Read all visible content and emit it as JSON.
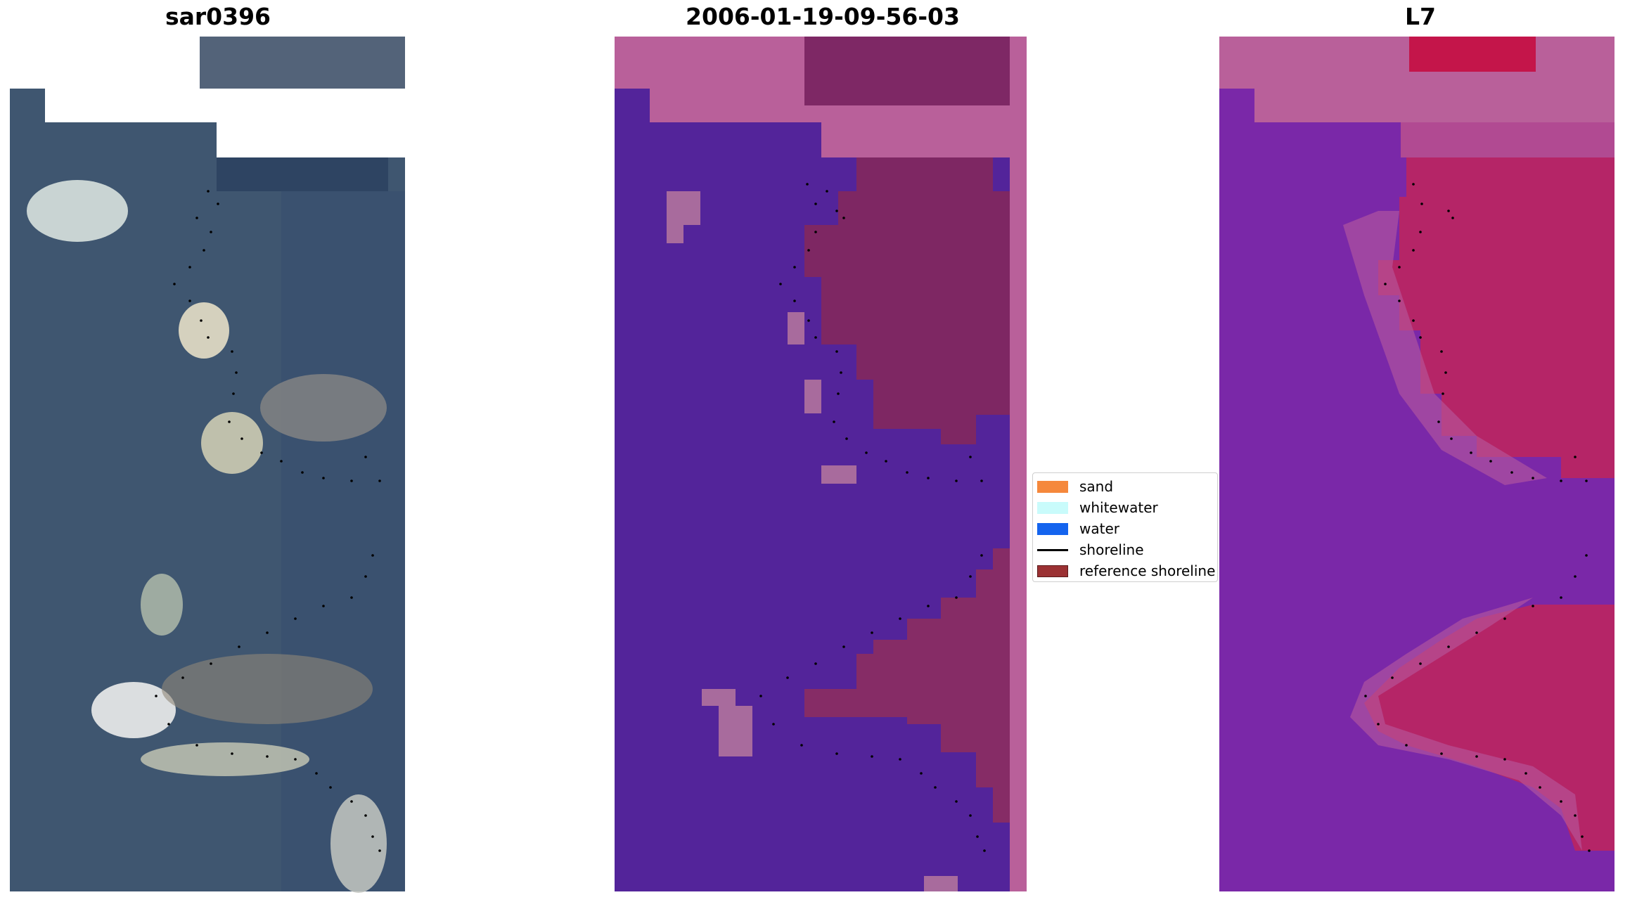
{
  "panels": [
    {
      "title": "sar0396",
      "kind": "rgb-image"
    },
    {
      "title": "2006-01-19-09-56-03",
      "kind": "classified-image"
    },
    {
      "title": "L7",
      "kind": "index-image"
    }
  ],
  "legend": {
    "items": [
      {
        "label": "sand",
        "color": "#f5883c",
        "marker": "patch"
      },
      {
        "label": "whitewater",
        "color": "#c9fbfb",
        "marker": "patch"
      },
      {
        "label": "water",
        "color": "#1464ee",
        "marker": "patch"
      },
      {
        "label": "shoreline",
        "color": "#000000",
        "marker": "line"
      },
      {
        "label": "reference shoreline",
        "color": "#9b3133",
        "marker": "patch"
      }
    ]
  },
  "colors": {
    "classified_water": "#53249a",
    "classified_land": "#b9609a",
    "classified_reef": "#8a2f66",
    "ocean_rgb": "#3f5670",
    "whitewater_rgb": "#d9dcd0",
    "index_purple": "#7424a8",
    "index_red": "#c8123e",
    "shoreline_dots": "#000000"
  }
}
